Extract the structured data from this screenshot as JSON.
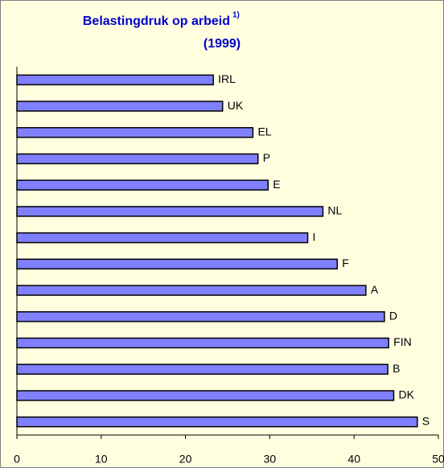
{
  "chart_data": {
    "type": "bar",
    "orientation": "horizontal",
    "title": "Belastingdruk op arbeid",
    "title_note": "1)",
    "subtitle": "(1999)",
    "categories": [
      "IRL",
      "UK",
      "EL",
      "P",
      "E",
      "NL",
      "I",
      "F",
      "A",
      "D",
      "FIN",
      "B",
      "DK",
      "S"
    ],
    "values": [
      23.3,
      24.4,
      28.0,
      28.6,
      29.8,
      36.3,
      34.5,
      38.0,
      41.4,
      43.6,
      44.1,
      44.0,
      44.7,
      47.5
    ],
    "color": "#8080ff",
    "xlim": [
      0,
      50
    ],
    "xticks": [
      0,
      10,
      20,
      30,
      40,
      50
    ],
    "grid": false
  }
}
